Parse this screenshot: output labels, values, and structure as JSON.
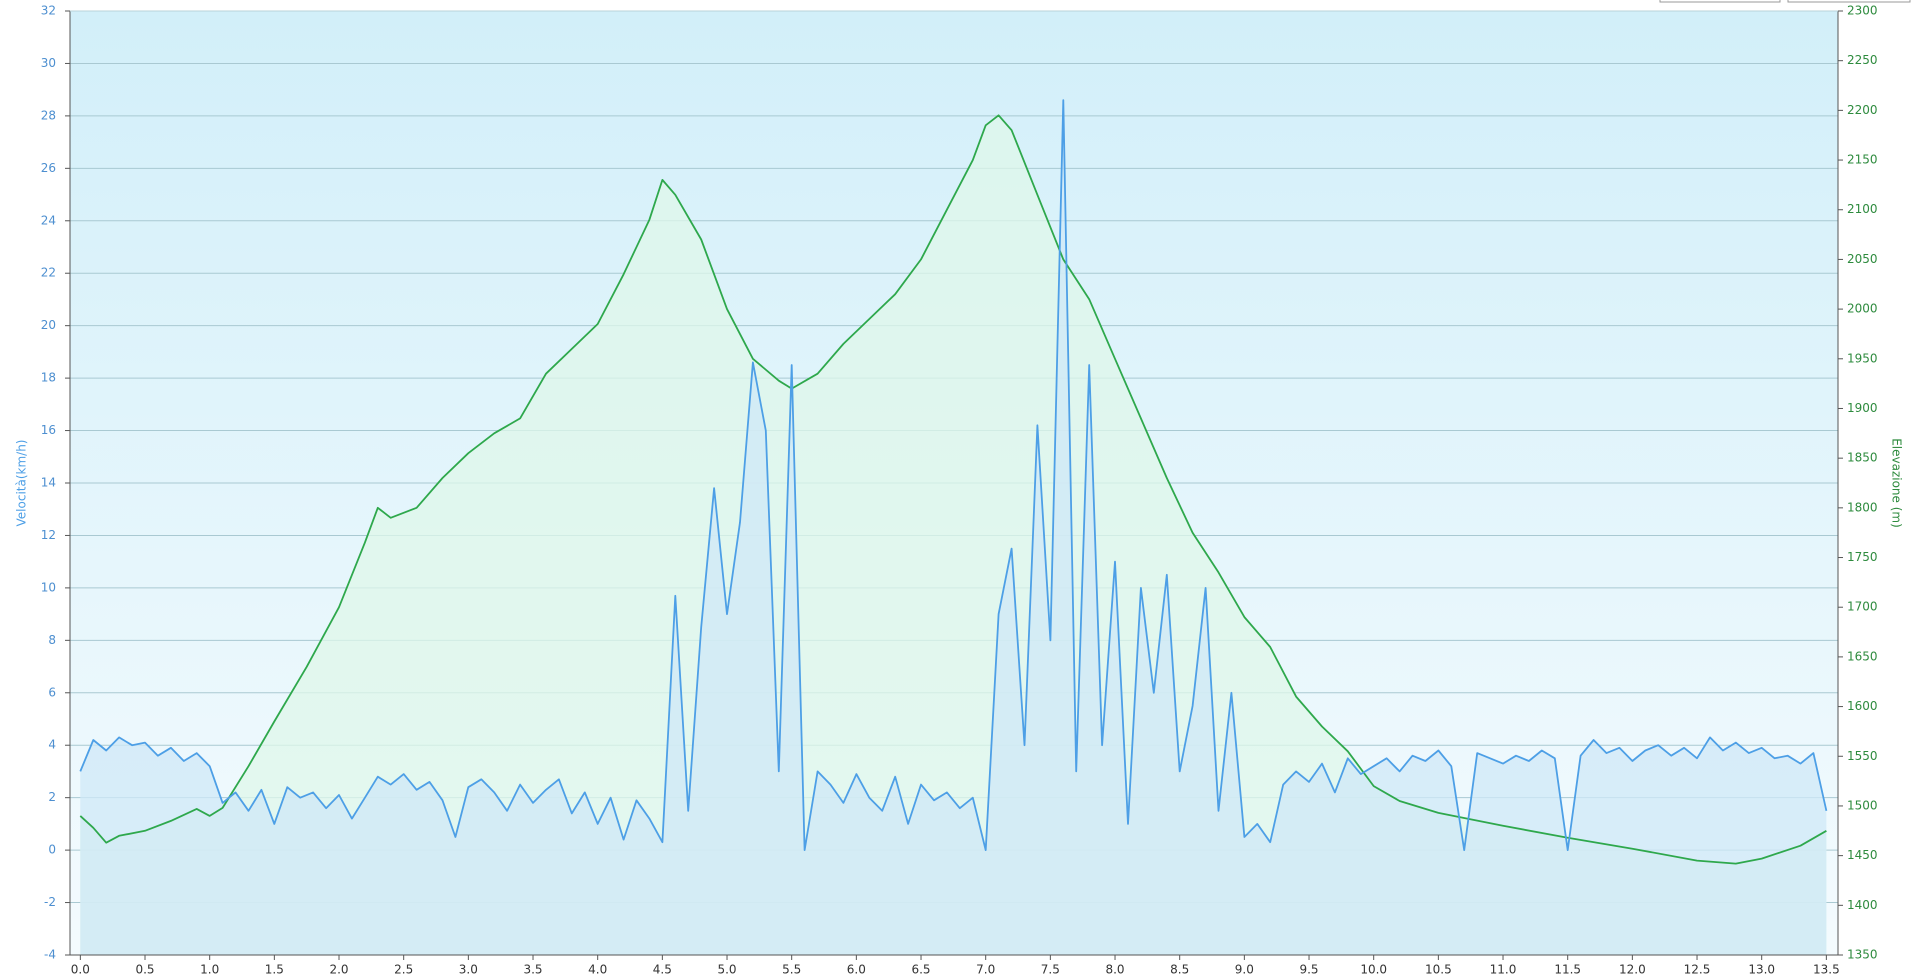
{
  "chart_data": {
    "type": "line",
    "y_label": "Velocità(km/h)",
    "y2_label": "Elevazione (m)",
    "xlim": [
      -0.08,
      13.59
    ],
    "xticks": [
      {
        "value": 0,
        "label": "0.0"
      },
      0.5,
      {
        "value": 1,
        "label": "1.0"
      },
      1.5,
      {
        "value": 2,
        "label": "2.0"
      },
      2.5,
      {
        "value": 3,
        "label": "3.0"
      },
      3.5,
      {
        "value": 4,
        "label": "4.0"
      },
      4.5,
      {
        "value": 5,
        "label": "5.0"
      },
      5.5,
      {
        "value": 6,
        "label": "6.0"
      },
      6.5,
      {
        "value": 7,
        "label": "7.0"
      },
      7.5,
      {
        "value": 8,
        "label": "8.0"
      },
      8.5,
      {
        "value": 9,
        "label": "9.0"
      },
      9.5,
      {
        "value": 10,
        "label": "10.0"
      },
      10.5,
      {
        "value": 11,
        "label": "11.0"
      },
      11.5,
      {
        "value": 12,
        "label": "12.0"
      },
      12.5,
      {
        "value": 13,
        "label": "13.0"
      },
      13.5
    ],
    "ylim": [
      -4,
      32
    ],
    "yticks": [
      -4,
      -2,
      0,
      2,
      4,
      6,
      8,
      10,
      12,
      14,
      16,
      18,
      20,
      22,
      24,
      26,
      28,
      30,
      32
    ],
    "y2lim": [
      1350,
      2300
    ],
    "y2ticks": [
      1350,
      1400,
      1450,
      1500,
      1550,
      1600,
      1650,
      1700,
      1750,
      1800,
      1850,
      1900,
      1950,
      2000,
      2050,
      2100,
      2150,
      2200,
      2250,
      2300
    ],
    "grid": true,
    "series": [
      {
        "color": "#2ea84c",
        "fill": "#dff7ea",
        "axis": "y2",
        "x": [
          0,
          0.1,
          0.2,
          0.3,
          0.5,
          0.7,
          0.9,
          1.0,
          1.1,
          1.3,
          1.5,
          1.75,
          2.0,
          2.2,
          2.3,
          2.4,
          2.6,
          2.8,
          3.0,
          3.2,
          3.4,
          3.6,
          3.8,
          4.0,
          4.2,
          4.4,
          4.5,
          4.6,
          4.8,
          5.0,
          5.2,
          5.4,
          5.5,
          5.7,
          5.9,
          6.1,
          6.3,
          6.5,
          6.7,
          6.9,
          7.0,
          7.1,
          7.2,
          7.4,
          7.6,
          7.8,
          8.0,
          8.2,
          8.4,
          8.6,
          8.8,
          9.0,
          9.2,
          9.4,
          9.6,
          9.8,
          10.0,
          10.2,
          10.5,
          11.0,
          11.5,
          12.0,
          12.5,
          12.8,
          13.0,
          13.3,
          13.5
        ],
        "values": [
          1490,
          1478,
          1463,
          1470,
          1475,
          1485,
          1497,
          1490,
          1498,
          1540,
          1585,
          1640,
          1700,
          1765,
          1800,
          1790,
          1800,
          1830,
          1855,
          1875,
          1890,
          1935,
          1960,
          1985,
          2035,
          2090,
          2130,
          2115,
          2070,
          2000,
          1950,
          1928,
          1920,
          1935,
          1965,
          1990,
          2015,
          2050,
          2100,
          2150,
          2185,
          2195,
          2180,
          2115,
          2050,
          2010,
          1950,
          1890,
          1830,
          1775,
          1735,
          1690,
          1660,
          1610,
          1580,
          1555,
          1520,
          1505,
          1493,
          1480,
          1468,
          1457,
          1445,
          1442,
          1447,
          1460,
          1475
        ]
      },
      {
        "color": "#4d9fe6",
        "fill": "#cfe8f7",
        "axis": "y",
        "x": [
          0,
          0.1,
          0.2,
          0.3,
          0.4,
          0.5,
          0.6,
          0.7,
          0.8,
          0.9,
          1.0,
          1.1,
          1.2,
          1.3,
          1.4,
          1.5,
          1.6,
          1.7,
          1.8,
          1.9,
          2.0,
          2.1,
          2.2,
          2.3,
          2.4,
          2.5,
          2.6,
          2.7,
          2.8,
          2.9,
          3.0,
          3.1,
          3.2,
          3.3,
          3.4,
          3.5,
          3.6,
          3.7,
          3.8,
          3.9,
          4.0,
          4.1,
          4.2,
          4.3,
          4.4,
          4.5,
          4.6,
          4.7,
          4.8,
          4.9,
          5.0,
          5.1,
          5.2,
          5.3,
          5.4,
          5.5,
          5.6,
          5.7,
          5.8,
          5.9,
          6.0,
          6.1,
          6.2,
          6.3,
          6.4,
          6.5,
          6.6,
          6.7,
          6.8,
          6.9,
          7.0,
          7.1,
          7.2,
          7.3,
          7.4,
          7.5,
          7.6,
          7.7,
          7.8,
          7.9,
          8.0,
          8.1,
          8.2,
          8.3,
          8.4,
          8.5,
          8.6,
          8.7,
          8.8,
          8.9,
          9.0,
          9.1,
          9.2,
          9.3,
          9.4,
          9.5,
          9.6,
          9.7,
          9.8,
          9.9,
          10.0,
          10.1,
          10.2,
          10.3,
          10.4,
          10.5,
          10.6,
          10.7,
          10.8,
          10.9,
          11.0,
          11.1,
          11.2,
          11.3,
          11.4,
          11.5,
          11.6,
          11.7,
          11.8,
          11.9,
          12.0,
          12.1,
          12.2,
          12.3,
          12.4,
          12.5,
          12.6,
          12.7,
          12.8,
          12.9,
          13.0,
          13.1,
          13.2,
          13.3,
          13.4,
          13.5
        ],
        "values": [
          3.0,
          4.2,
          3.8,
          4.3,
          4.0,
          4.1,
          3.6,
          3.9,
          3.4,
          3.7,
          3.2,
          1.8,
          2.2,
          1.5,
          2.3,
          1.0,
          2.4,
          2.0,
          2.2,
          1.6,
          2.1,
          1.2,
          2.0,
          2.8,
          2.5,
          2.9,
          2.3,
          2.6,
          1.9,
          0.5,
          2.4,
          2.7,
          2.2,
          1.5,
          2.5,
          1.8,
          2.3,
          2.7,
          1.4,
          2.2,
          1.0,
          2.0,
          0.4,
          1.9,
          1.2,
          0.3,
          9.7,
          1.5,
          8.5,
          13.8,
          9.0,
          12.5,
          18.6,
          16.0,
          3.0,
          18.5,
          0.0,
          3.0,
          2.5,
          1.8,
          2.9,
          2.0,
          1.5,
          2.8,
          1.0,
          2.5,
          1.9,
          2.2,
          1.6,
          2.0,
          0.0,
          9.0,
          11.5,
          4.0,
          16.2,
          8.0,
          28.6,
          3.0,
          18.5,
          4.0,
          11.0,
          1.0,
          10.0,
          6.0,
          10.5,
          3.0,
          5.5,
          10.0,
          1.5,
          6.0,
          0.5,
          1.0,
          0.3,
          2.5,
          3.0,
          2.6,
          3.3,
          2.2,
          3.5,
          2.9,
          3.2,
          3.5,
          3.0,
          3.6,
          3.4,
          3.8,
          3.2,
          0.0,
          3.7,
          3.5,
          3.3,
          3.6,
          3.4,
          3.8,
          3.5,
          0.0,
          3.6,
          4.2,
          3.7,
          3.9,
          3.4,
          3.8,
          4.0,
          3.6,
          3.9,
          3.5,
          4.3,
          3.8,
          4.1,
          3.7,
          3.9,
          3.5,
          3.6,
          3.3,
          3.7,
          1.5
        ]
      }
    ]
  }
}
